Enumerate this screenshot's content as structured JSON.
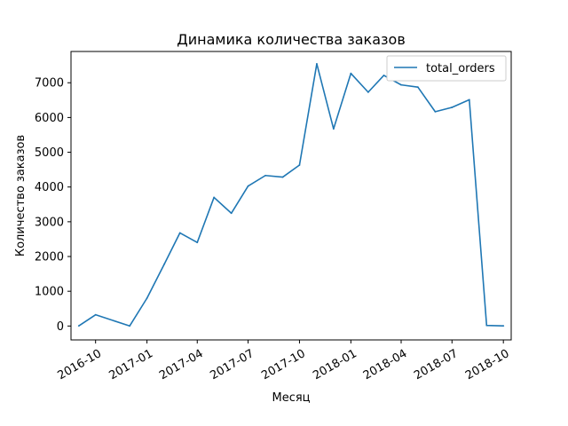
{
  "chart_data": {
    "type": "line",
    "title": "Динамика количества заказов",
    "xlabel": "Месяц",
    "ylabel": "Количество заказов",
    "legend_position": "top-right",
    "grid": false,
    "ylim": [
      -400,
      7900
    ],
    "xlim": [
      "2016-08-18",
      "2018-10-15"
    ],
    "x_ticks": [
      {
        "date": "2016-10-01",
        "label": "2016-10"
      },
      {
        "date": "2017-01-01",
        "label": "2017-01"
      },
      {
        "date": "2017-04-01",
        "label": "2017-04"
      },
      {
        "date": "2017-07-01",
        "label": "2017-07"
      },
      {
        "date": "2017-10-01",
        "label": "2017-10"
      },
      {
        "date": "2018-01-01",
        "label": "2018-01"
      },
      {
        "date": "2018-04-01",
        "label": "2018-04"
      },
      {
        "date": "2018-07-01",
        "label": "2018-07"
      },
      {
        "date": "2018-10-01",
        "label": "2018-10"
      }
    ],
    "y_ticks": [
      0,
      1000,
      2000,
      3000,
      4000,
      5000,
      6000,
      7000
    ],
    "series": [
      {
        "name": "total_orders",
        "color": "#1f77b4",
        "points": [
          {
            "x": "2016-09-01",
            "y": 4
          },
          {
            "x": "2016-10-01",
            "y": 324
          },
          {
            "x": "2016-12-01",
            "y": 1
          },
          {
            "x": "2017-01-01",
            "y": 800
          },
          {
            "x": "2017-02-01",
            "y": 1780
          },
          {
            "x": "2017-03-01",
            "y": 2680
          },
          {
            "x": "2017-04-01",
            "y": 2404
          },
          {
            "x": "2017-05-01",
            "y": 3700
          },
          {
            "x": "2017-06-01",
            "y": 3245
          },
          {
            "x": "2017-07-01",
            "y": 4026
          },
          {
            "x": "2017-08-01",
            "y": 4331
          },
          {
            "x": "2017-09-01",
            "y": 4285
          },
          {
            "x": "2017-10-01",
            "y": 4631
          },
          {
            "x": "2017-11-01",
            "y": 7544
          },
          {
            "x": "2017-12-01",
            "y": 5673
          },
          {
            "x": "2018-01-01",
            "y": 7269
          },
          {
            "x": "2018-02-01",
            "y": 6728
          },
          {
            "x": "2018-03-01",
            "y": 7211
          },
          {
            "x": "2018-04-01",
            "y": 6939
          },
          {
            "x": "2018-05-01",
            "y": 6873
          },
          {
            "x": "2018-06-01",
            "y": 6167
          },
          {
            "x": "2018-07-01",
            "y": 6292
          },
          {
            "x": "2018-08-01",
            "y": 6512
          },
          {
            "x": "2018-09-01",
            "y": 16
          },
          {
            "x": "2018-10-01",
            "y": 4
          }
        ]
      }
    ]
  }
}
